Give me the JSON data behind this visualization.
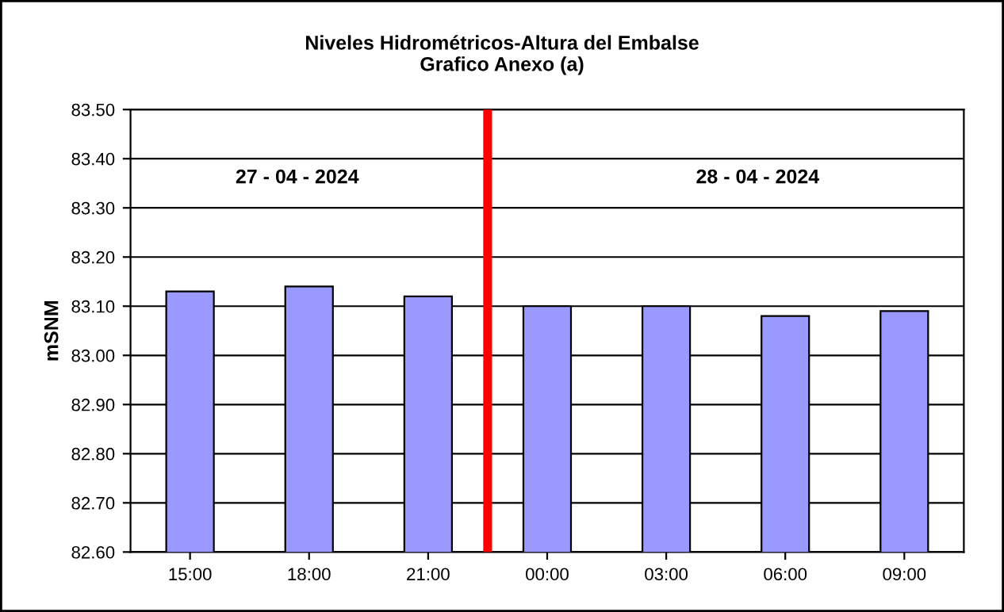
{
  "chart_data": {
    "type": "bar",
    "title": "Niveles Hidrométricos-Altura del Embalse\nGrafico Anexo (a)",
    "ylabel": "mSNM",
    "x": [
      "2024-04-27T15:00",
      "2024-04-27T18:00",
      "2024-04-27T21:00",
      "2024-04-28T00:00",
      "2024-04-28T03:00",
      "2024-04-28T06:00",
      "2024-04-28T09:00"
    ],
    "values": [
      83.13,
      83.14,
      83.12,
      83.1,
      83.1,
      83.08,
      83.09
    ],
    "color": "#9999ff",
    "xlim": [
      "2024-04-27T13:30",
      "2024-04-28T10:30"
    ],
    "xticks": [
      {
        "value": "2024-04-27T15:00",
        "label": "15:00"
      },
      {
        "value": "2024-04-27T18:00",
        "label": "18:00"
      },
      {
        "value": "2024-04-27T21:00",
        "label": "21:00"
      },
      {
        "value": "2024-04-28T00:00",
        "label": "00:00"
      },
      {
        "value": "2024-04-28T03:00",
        "label": "03:00"
      },
      {
        "value": "2024-04-28T06:00",
        "label": "06:00"
      },
      {
        "value": "2024-04-28T09:00",
        "label": "09:00"
      }
    ],
    "ylim": [
      82.6,
      83.5
    ],
    "yticks": [
      {
        "value": 82.6,
        "label": "82.60"
      },
      {
        "value": 82.7,
        "label": "82.70"
      },
      {
        "value": 82.8,
        "label": "82.80"
      },
      {
        "value": 82.9,
        "label": "82.90"
      },
      {
        "value": 83.0,
        "label": "83.00"
      },
      {
        "value": 83.1,
        "label": "83.10"
      },
      {
        "value": 83.2,
        "label": "83.20"
      },
      {
        "value": 83.3,
        "label": "83.30"
      },
      {
        "value": 83.4,
        "label": "83.40"
      },
      {
        "value": 83.5,
        "label": "83.50"
      }
    ],
    "ref_lines": [
      {
        "axis": "x",
        "value": "2024-04-27T22:30",
        "color": "#ff0000"
      }
    ],
    "annotations": [
      "27 - 04 - 2024",
      "28 - 04 - 2024"
    ],
    "grid": "y",
    "legend": false
  }
}
